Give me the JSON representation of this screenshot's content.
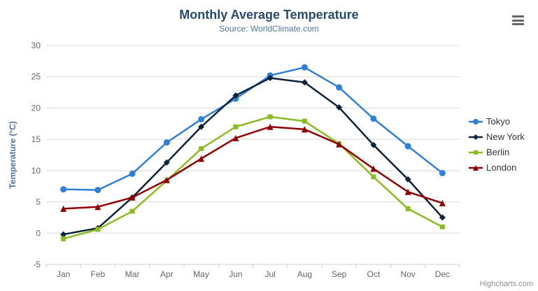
{
  "credits": "Highcharts.com",
  "theme": {
    "background": "#ffffff",
    "title_color": "#274b6d",
    "subtitle_color": "#4d759e",
    "axis_label_color": "#666666",
    "axis_title_color": "#4d759e",
    "grid_color": "#d8d8d8",
    "xaxis_line_color": "#c0d0e0",
    "legend_text_color": "#333333",
    "credits_color": "#909090",
    "menu_icon_color": "#666666"
  },
  "export_menu": {
    "icon": "hamburger-icon"
  },
  "chart_data": {
    "type": "line",
    "title": "Monthly Average Temperature",
    "subtitle": "Source: WorldClimate.com",
    "categories": [
      "Jan",
      "Feb",
      "Mar",
      "Apr",
      "May",
      "Jun",
      "Jul",
      "Aug",
      "Sep",
      "Oct",
      "Nov",
      "Dec"
    ],
    "xlabel": "",
    "ylabel": "Temperature (°C)",
    "ylim": [
      -5,
      30
    ],
    "ytick_step": 5,
    "grid": true,
    "legend_position": "right",
    "series": [
      {
        "name": "Tokyo",
        "color": "#2f7ed8",
        "marker": "circle",
        "values": [
          7.0,
          6.9,
          9.5,
          14.5,
          18.2,
          21.5,
          25.2,
          26.5,
          23.3,
          18.3,
          13.9,
          9.6
        ]
      },
      {
        "name": "New York",
        "color": "#0d233a",
        "marker": "diamond",
        "values": [
          -0.2,
          0.8,
          5.7,
          11.3,
          17.0,
          22.0,
          24.8,
          24.1,
          20.1,
          14.1,
          8.6,
          2.5
        ]
      },
      {
        "name": "Berlin",
        "color": "#8bbc21",
        "marker": "square",
        "values": [
          -0.9,
          0.6,
          3.5,
          8.4,
          13.5,
          17.0,
          18.6,
          17.9,
          14.3,
          9.0,
          3.9,
          1.0
        ]
      },
      {
        "name": "London",
        "color": "#910000",
        "marker": "triangle",
        "values": [
          3.9,
          4.2,
          5.7,
          8.5,
          11.9,
          15.2,
          17.0,
          16.6,
          14.2,
          10.3,
          6.6,
          4.8
        ]
      }
    ]
  }
}
